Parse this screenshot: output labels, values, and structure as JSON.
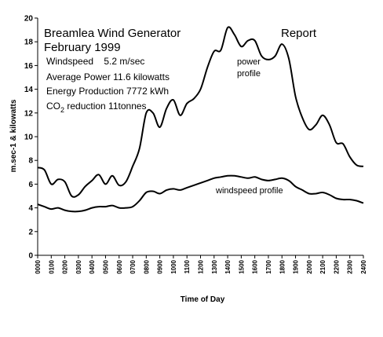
{
  "chart_data": {
    "type": "line",
    "x_unit_labels": [
      "0000",
      "0100",
      "0200",
      "0300",
      "0400",
      "0500",
      "0600",
      "0700",
      "0800",
      "0900",
      "1000",
      "1100",
      "1200",
      "1300",
      "1400",
      "1500",
      "1600",
      "1700",
      "1800",
      "1900",
      "2000",
      "2100",
      "2200",
      "2300",
      "2400"
    ],
    "xlim": [
      0,
      24
    ],
    "ylim": [
      0,
      20
    ],
    "yticks": [
      0,
      2,
      4,
      6,
      8,
      10,
      12,
      14,
      16,
      18,
      20
    ],
    "xlabel": "Time of Day",
    "ylabel": "m.sec-1 & kilowatts",
    "grid": false,
    "legend": "none",
    "annotations": {
      "title_line1": "Breamlea Wind Generator",
      "title_line2": "February 1999",
      "report": "Report",
      "windspeed": "Windspeed    5.2 m/sec",
      "avg_power": "Average Power 11.6 kilowatts",
      "energy": "Energy Production 7772 kWh",
      "co2_prefix": "CO",
      "co2_sub": "2",
      "co2_suffix": " reduction 11tonnes"
    },
    "series": [
      {
        "name": "power profile",
        "label_line1": "power",
        "label_line2": "profile",
        "color": "#000000",
        "x": [
          0,
          0.5,
          1,
          1.5,
          2,
          2.5,
          3,
          3.5,
          4,
          4.5,
          5,
          5.5,
          6,
          6.5,
          7,
          7.5,
          8,
          8.5,
          9,
          9.5,
          10,
          10.5,
          11,
          11.5,
          12,
          12.5,
          13,
          13.5,
          14,
          14.5,
          15,
          15.5,
          16,
          16.5,
          17,
          17.5,
          18,
          18.5,
          19,
          19.5,
          20,
          20.5,
          21,
          21.5,
          22,
          22.5,
          23,
          23.5,
          24
        ],
        "values": [
          7.4,
          7.2,
          6.0,
          6.4,
          6.2,
          5.0,
          5.1,
          5.8,
          6.3,
          6.8,
          6.0,
          6.7,
          5.9,
          6.2,
          7.5,
          9.0,
          12.0,
          12.0,
          10.8,
          12.4,
          13.1,
          11.8,
          12.8,
          13.2,
          14.0,
          15.8,
          17.2,
          17.3,
          19.2,
          18.6,
          17.6,
          18.1,
          18.1,
          16.8,
          16.5,
          16.8,
          17.8,
          16.6,
          13.4,
          11.6,
          10.6,
          11.0,
          11.8,
          11.0,
          9.5,
          9.4,
          8.3,
          7.6,
          7.5
        ]
      },
      {
        "name": "windspeed profile",
        "color": "#000000",
        "x": [
          0,
          0.5,
          1,
          1.5,
          2,
          2.5,
          3,
          3.5,
          4,
          4.5,
          5,
          5.5,
          6,
          6.5,
          7,
          7.5,
          8,
          8.5,
          9,
          9.5,
          10,
          10.5,
          11,
          11.5,
          12,
          12.5,
          13,
          13.5,
          14,
          14.5,
          15,
          15.5,
          16,
          16.5,
          17,
          17.5,
          18,
          18.5,
          19,
          19.5,
          20,
          20.5,
          21,
          21.5,
          22,
          22.5,
          23,
          23.5,
          24
        ],
        "values": [
          4.3,
          4.1,
          3.9,
          4.0,
          3.8,
          3.7,
          3.7,
          3.8,
          4.0,
          4.1,
          4.1,
          4.2,
          4.0,
          4.0,
          4.1,
          4.6,
          5.3,
          5.4,
          5.2,
          5.5,
          5.6,
          5.5,
          5.7,
          5.9,
          6.1,
          6.3,
          6.5,
          6.6,
          6.7,
          6.7,
          6.6,
          6.5,
          6.6,
          6.4,
          6.3,
          6.4,
          6.5,
          6.3,
          5.8,
          5.5,
          5.2,
          5.2,
          5.3,
          5.1,
          4.8,
          4.7,
          4.7,
          4.6,
          4.4
        ]
      }
    ]
  }
}
